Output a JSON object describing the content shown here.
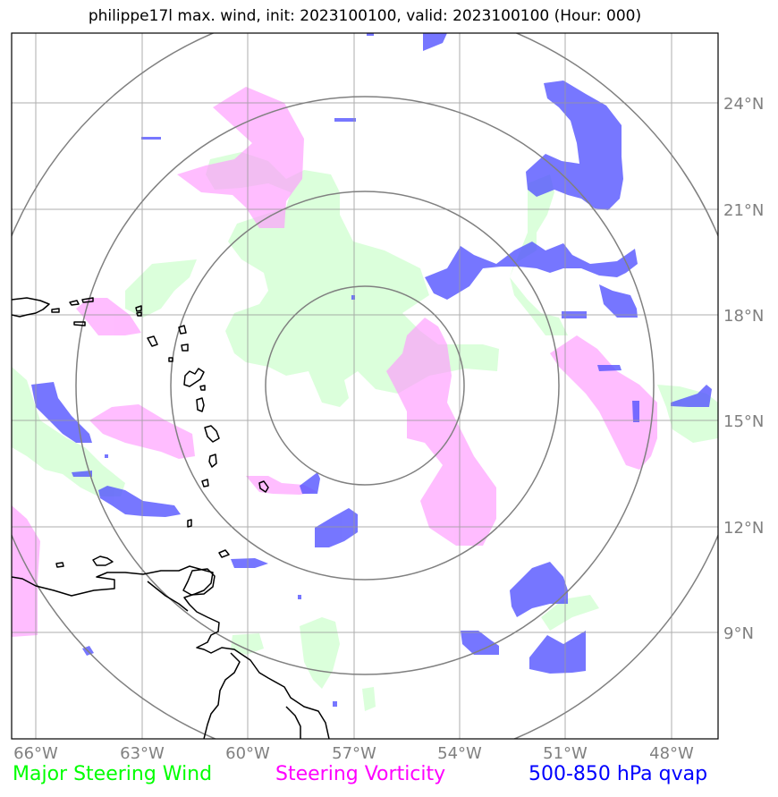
{
  "title": "philippe17l max. wind, init: 2023100100, valid: 2023100100 (Hour: 000)",
  "lon_ticks": [
    "66°W",
    "63°W",
    "60°W",
    "57°W",
    "54°W",
    "51°W",
    "48°W"
  ],
  "lat_ticks": [
    "24°N",
    "21°N",
    "18°N",
    "15°N",
    "12°N",
    "9°N"
  ],
  "legend": {
    "wind": "Major Steering Wind",
    "vorticity": "Steering Vorticity",
    "qvap": "500-850 hPa qvap"
  },
  "colors": {
    "wind_label": "#00ff00",
    "vorticity_label": "#ff00ff",
    "qvap_label": "#0000ff",
    "wind_fill": "#ccffcc",
    "vorticity_fill": "#ff99ff",
    "qvap_fill": "#5555ff",
    "grid": "#999999",
    "range_rings": "#808080",
    "coastline": "#000000"
  }
}
